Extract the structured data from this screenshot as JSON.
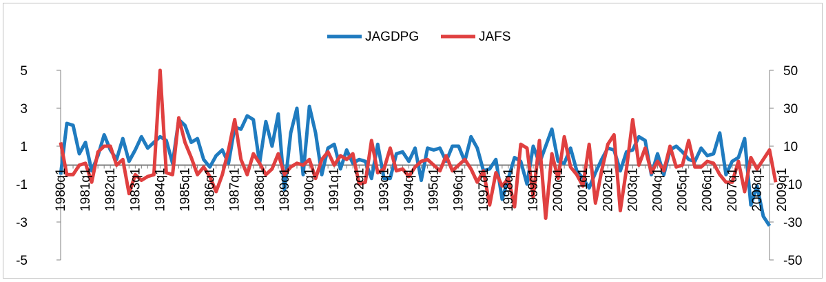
{
  "chart_data": {
    "type": "line",
    "title": "",
    "xlabel": "",
    "ylabel": "",
    "ylim_left": [
      -5,
      5
    ],
    "ylim_right": [
      -50,
      50
    ],
    "yticks_left": [
      "5",
      "3",
      "1",
      "-1",
      "-3",
      "-5"
    ],
    "yticks_right": [
      "50",
      "30",
      "10",
      "-10",
      "-30",
      "-50"
    ],
    "xtick_labels": [
      "1980q1",
      "1981q1",
      "1982q1",
      "1983q1",
      "1984q1",
      "1985q1",
      "1986q1",
      "1987q1",
      "1988q1",
      "1989q1",
      "1990q1",
      "1991q1",
      "1992q1",
      "1993q1",
      "1994q1",
      "1995q1",
      "1996q1",
      "1997q1",
      "1998q1",
      "1999q1",
      "2000q1",
      "2001q1",
      "2002q1",
      "2003q1",
      "2004q1",
      "2005q1",
      "2006q1",
      "2007q1",
      "2008q1",
      "2009q1"
    ],
    "legend_position": "top-center",
    "grid": false,
    "zero_line": true,
    "series": [
      {
        "name": "JAGDPG",
        "axis": "left",
        "color": "#1f7bbf",
        "values": [
          -0.5,
          2.2,
          2.1,
          0.6,
          1.2,
          -0.3,
          0.5,
          1.6,
          0.8,
          0.3,
          1.4,
          0.2,
          0.8,
          1.5,
          0.9,
          1.2,
          1.5,
          1.3,
          0.1,
          2.4,
          2.1,
          1.2,
          1.4,
          0.3,
          -0.1,
          0.5,
          0.8,
          0.1,
          2.0,
          1.9,
          2.6,
          2.4,
          0.1,
          2.3,
          1.0,
          2.7,
          -1.3,
          1.7,
          3.0,
          -0.5,
          3.1,
          1.7,
          -0.5,
          0.9,
          1.1,
          -0.2,
          0.8,
          0.1,
          0.3,
          0.2,
          -0.7,
          1.1,
          -0.7,
          -0.7,
          0.6,
          0.7,
          0.2,
          0.9,
          -0.8,
          0.9,
          0.8,
          0.9,
          0.2,
          1.0,
          1.0,
          0.2,
          1.5,
          0.9,
          -0.3,
          -0.2,
          0.3,
          -1.8,
          -0.7,
          0.4,
          0.2,
          -1.0,
          1.0,
          0.1,
          1.0,
          1.9,
          0.2,
          0.1,
          0.9,
          -0.3,
          -0.7,
          -1.2,
          -0.4,
          0.3,
          0.9,
          0.8,
          -0.3,
          0.7,
          0.8,
          1.5,
          1.3,
          -0.5,
          0.6,
          -0.5,
          0.8,
          1.0,
          0.7,
          0.3,
          0.2,
          0.9,
          0.5,
          0.6,
          1.7,
          -0.5,
          0.2,
          0.4,
          1.4,
          -2.1,
          -1.1,
          -2.7,
          -3.2
        ]
      },
      {
        "name": "JAFS",
        "axis": "right",
        "color": "#e04040",
        "values": [
          12,
          -5,
          -5,
          0,
          1,
          -9,
          7,
          10,
          10,
          0,
          3,
          -15,
          -5,
          -8,
          -6,
          -5,
          50,
          -4,
          -5,
          25,
          12,
          4,
          -5,
          -1,
          -6,
          -14,
          -5,
          8,
          24,
          3,
          -5,
          6,
          1,
          -5,
          -2,
          6,
          -5,
          -1,
          1,
          0,
          3,
          -7,
          3,
          7,
          0,
          5,
          3,
          6,
          -10,
          -9,
          13,
          -4,
          -2,
          9,
          -3,
          -2,
          -6,
          -1,
          2,
          3,
          0,
          -3,
          5,
          -3,
          0,
          3,
          -2,
          -9,
          -3,
          -21,
          -4,
          -11,
          -7,
          -22,
          11,
          9,
          -17,
          13,
          -28,
          6,
          -7,
          15,
          -1,
          -5,
          -11,
          11,
          -20,
          -3,
          11,
          16,
          -24,
          -2,
          24,
          0,
          9,
          -4,
          2,
          -3,
          10,
          -1,
          0,
          13,
          -1,
          -1,
          2,
          1,
          -5,
          -9,
          -9,
          2,
          -14,
          4,
          -2,
          3,
          8,
          -9
        ]
      }
    ]
  }
}
